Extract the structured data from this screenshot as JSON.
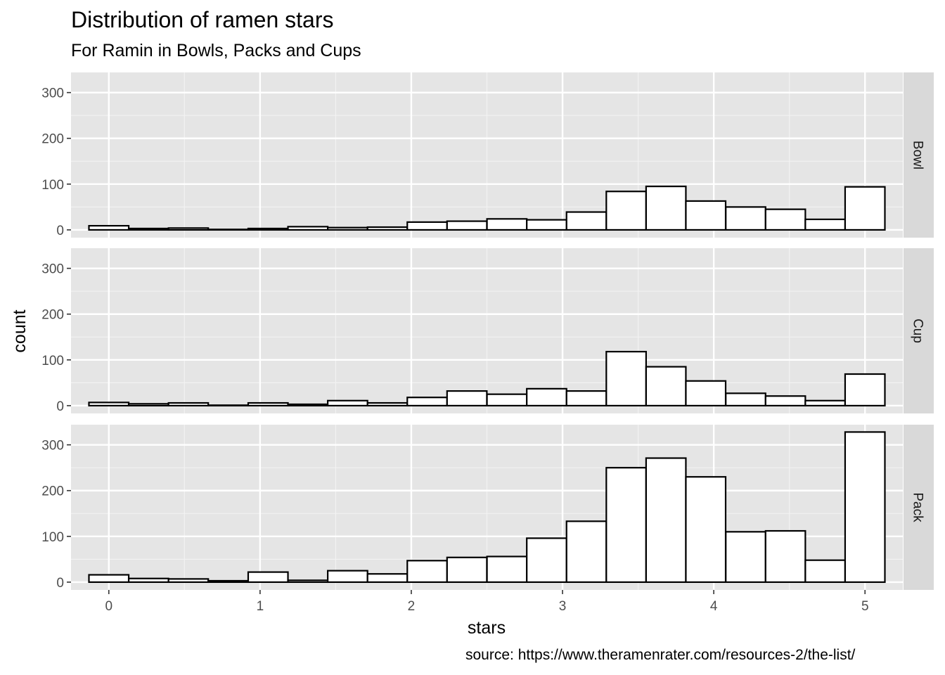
{
  "title": "Distribution of ramen stars",
  "subtitle": "For Ramin in Bowls, Packs and Cups",
  "caption": "source: https://www.theramenrater.com/resources-2/the-list/",
  "chart_data": {
    "type": "bar",
    "subtype": "faceted-histogram",
    "xlabel": "stars",
    "ylabel": "count",
    "xlim": [
      -0.25,
      5.25
    ],
    "ylim": [
      0,
      340
    ],
    "x_ticks": [
      "0",
      "1",
      "2",
      "3",
      "4",
      "5"
    ],
    "y_ticks": [
      "0",
      "100",
      "200",
      "300"
    ],
    "bin_width": 0.263,
    "bin_centers": [
      0.0,
      0.263,
      0.526,
      0.789,
      1.053,
      1.316,
      1.579,
      1.842,
      2.105,
      2.368,
      2.632,
      2.895,
      3.158,
      3.421,
      3.684,
      3.947,
      4.211,
      4.474,
      4.737,
      5.0
    ],
    "grid": true,
    "bar_fill": "#ffffff",
    "bar_stroke": "#000000",
    "panel_background": "#e5e5e5",
    "strip_background": "#d9d9d9",
    "facets": [
      {
        "name": "Bowl",
        "values": [
          9,
          3,
          4,
          1,
          3,
          7,
          5,
          6,
          17,
          19,
          24,
          22,
          39,
          84,
          95,
          63,
          50,
          45,
          23,
          94
        ]
      },
      {
        "name": "Cup",
        "values": [
          7,
          4,
          6,
          1,
          6,
          3,
          11,
          6,
          18,
          32,
          25,
          37,
          32,
          118,
          85,
          54,
          27,
          21,
          11,
          69
        ]
      },
      {
        "name": "Pack",
        "values": [
          16,
          8,
          7,
          3,
          22,
          4,
          25,
          18,
          47,
          54,
          56,
          96,
          133,
          250,
          271,
          230,
          110,
          112,
          48,
          328
        ]
      }
    ]
  }
}
